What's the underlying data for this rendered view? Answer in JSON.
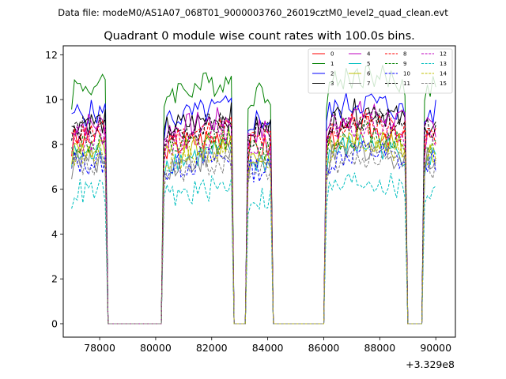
{
  "chart_data": {
    "type": "line",
    "suptitle": "Data file: modeM0/AS1A07_068T01_9000003760_26019cztM0_level2_quad_clean.evt",
    "title": "Quadrant 0 module wise count rates with 100.0s bins.",
    "xlabel": "",
    "ylabel": "",
    "x_offset_label": "+3.329e8",
    "xlim": [
      76700,
      90700
    ],
    "ylim": [
      -0.6,
      12.4
    ],
    "x_ticks": [
      78000,
      80000,
      82000,
      84000,
      86000,
      88000,
      90000
    ],
    "x_tick_labels": [
      "78000",
      "80000",
      "82000",
      "84000",
      "86000",
      "88000",
      "90000"
    ],
    "y_ticks": [
      0,
      2,
      4,
      6,
      8,
      10,
      12
    ],
    "y_tick_labels": [
      "0",
      "2",
      "4",
      "6",
      "8",
      "10",
      "12"
    ],
    "grid": false,
    "legend_position": "top-right",
    "segments": [
      {
        "start": 77000,
        "end": 78200
      },
      {
        "start": 80300,
        "end": 82700
      },
      {
        "start": 83300,
        "end": 84100
      },
      {
        "start": 86100,
        "end": 88900
      },
      {
        "start": 89600,
        "end": 90000
      }
    ],
    "series": [
      {
        "name": "0",
        "color": "#ff0000",
        "dash": "solid",
        "level": 8.2
      },
      {
        "name": "1",
        "color": "#008000",
        "dash": "solid",
        "level": 10.6
      },
      {
        "name": "2",
        "color": "#0000ff",
        "dash": "solid",
        "level": 9.4
      },
      {
        "name": "3",
        "color": "#000000",
        "dash": "solid",
        "level": 9.0
      },
      {
        "name": "4",
        "color": "#bf00bf",
        "dash": "solid",
        "level": 8.9
      },
      {
        "name": "5",
        "color": "#00bfbf",
        "dash": "solid",
        "level": 7.5
      },
      {
        "name": "6",
        "color": "#bfbf00",
        "dash": "solid",
        "level": 7.8
      },
      {
        "name": "7",
        "color": "#808080",
        "dash": "solid",
        "level": 7.3
      },
      {
        "name": "8",
        "color": "#ff0000",
        "dash": "dashed",
        "level": 8.5
      },
      {
        "name": "9",
        "color": "#008000",
        "dash": "dashed",
        "level": 8.0
      },
      {
        "name": "10",
        "color": "#0000ff",
        "dash": "dashed",
        "level": 7.2
      },
      {
        "name": "11",
        "color": "#000000",
        "dash": "dashed",
        "level": 8.7
      },
      {
        "name": "12",
        "color": "#bf00bf",
        "dash": "dashed",
        "level": 8.3
      },
      {
        "name": "13",
        "color": "#00bfbf",
        "dash": "dashed",
        "level": 5.9
      },
      {
        "name": "14",
        "color": "#bfbf00",
        "dash": "dashed",
        "level": 7.6
      },
      {
        "name": "15",
        "color": "#808080",
        "dash": "dashed",
        "level": 7.0
      }
    ]
  }
}
